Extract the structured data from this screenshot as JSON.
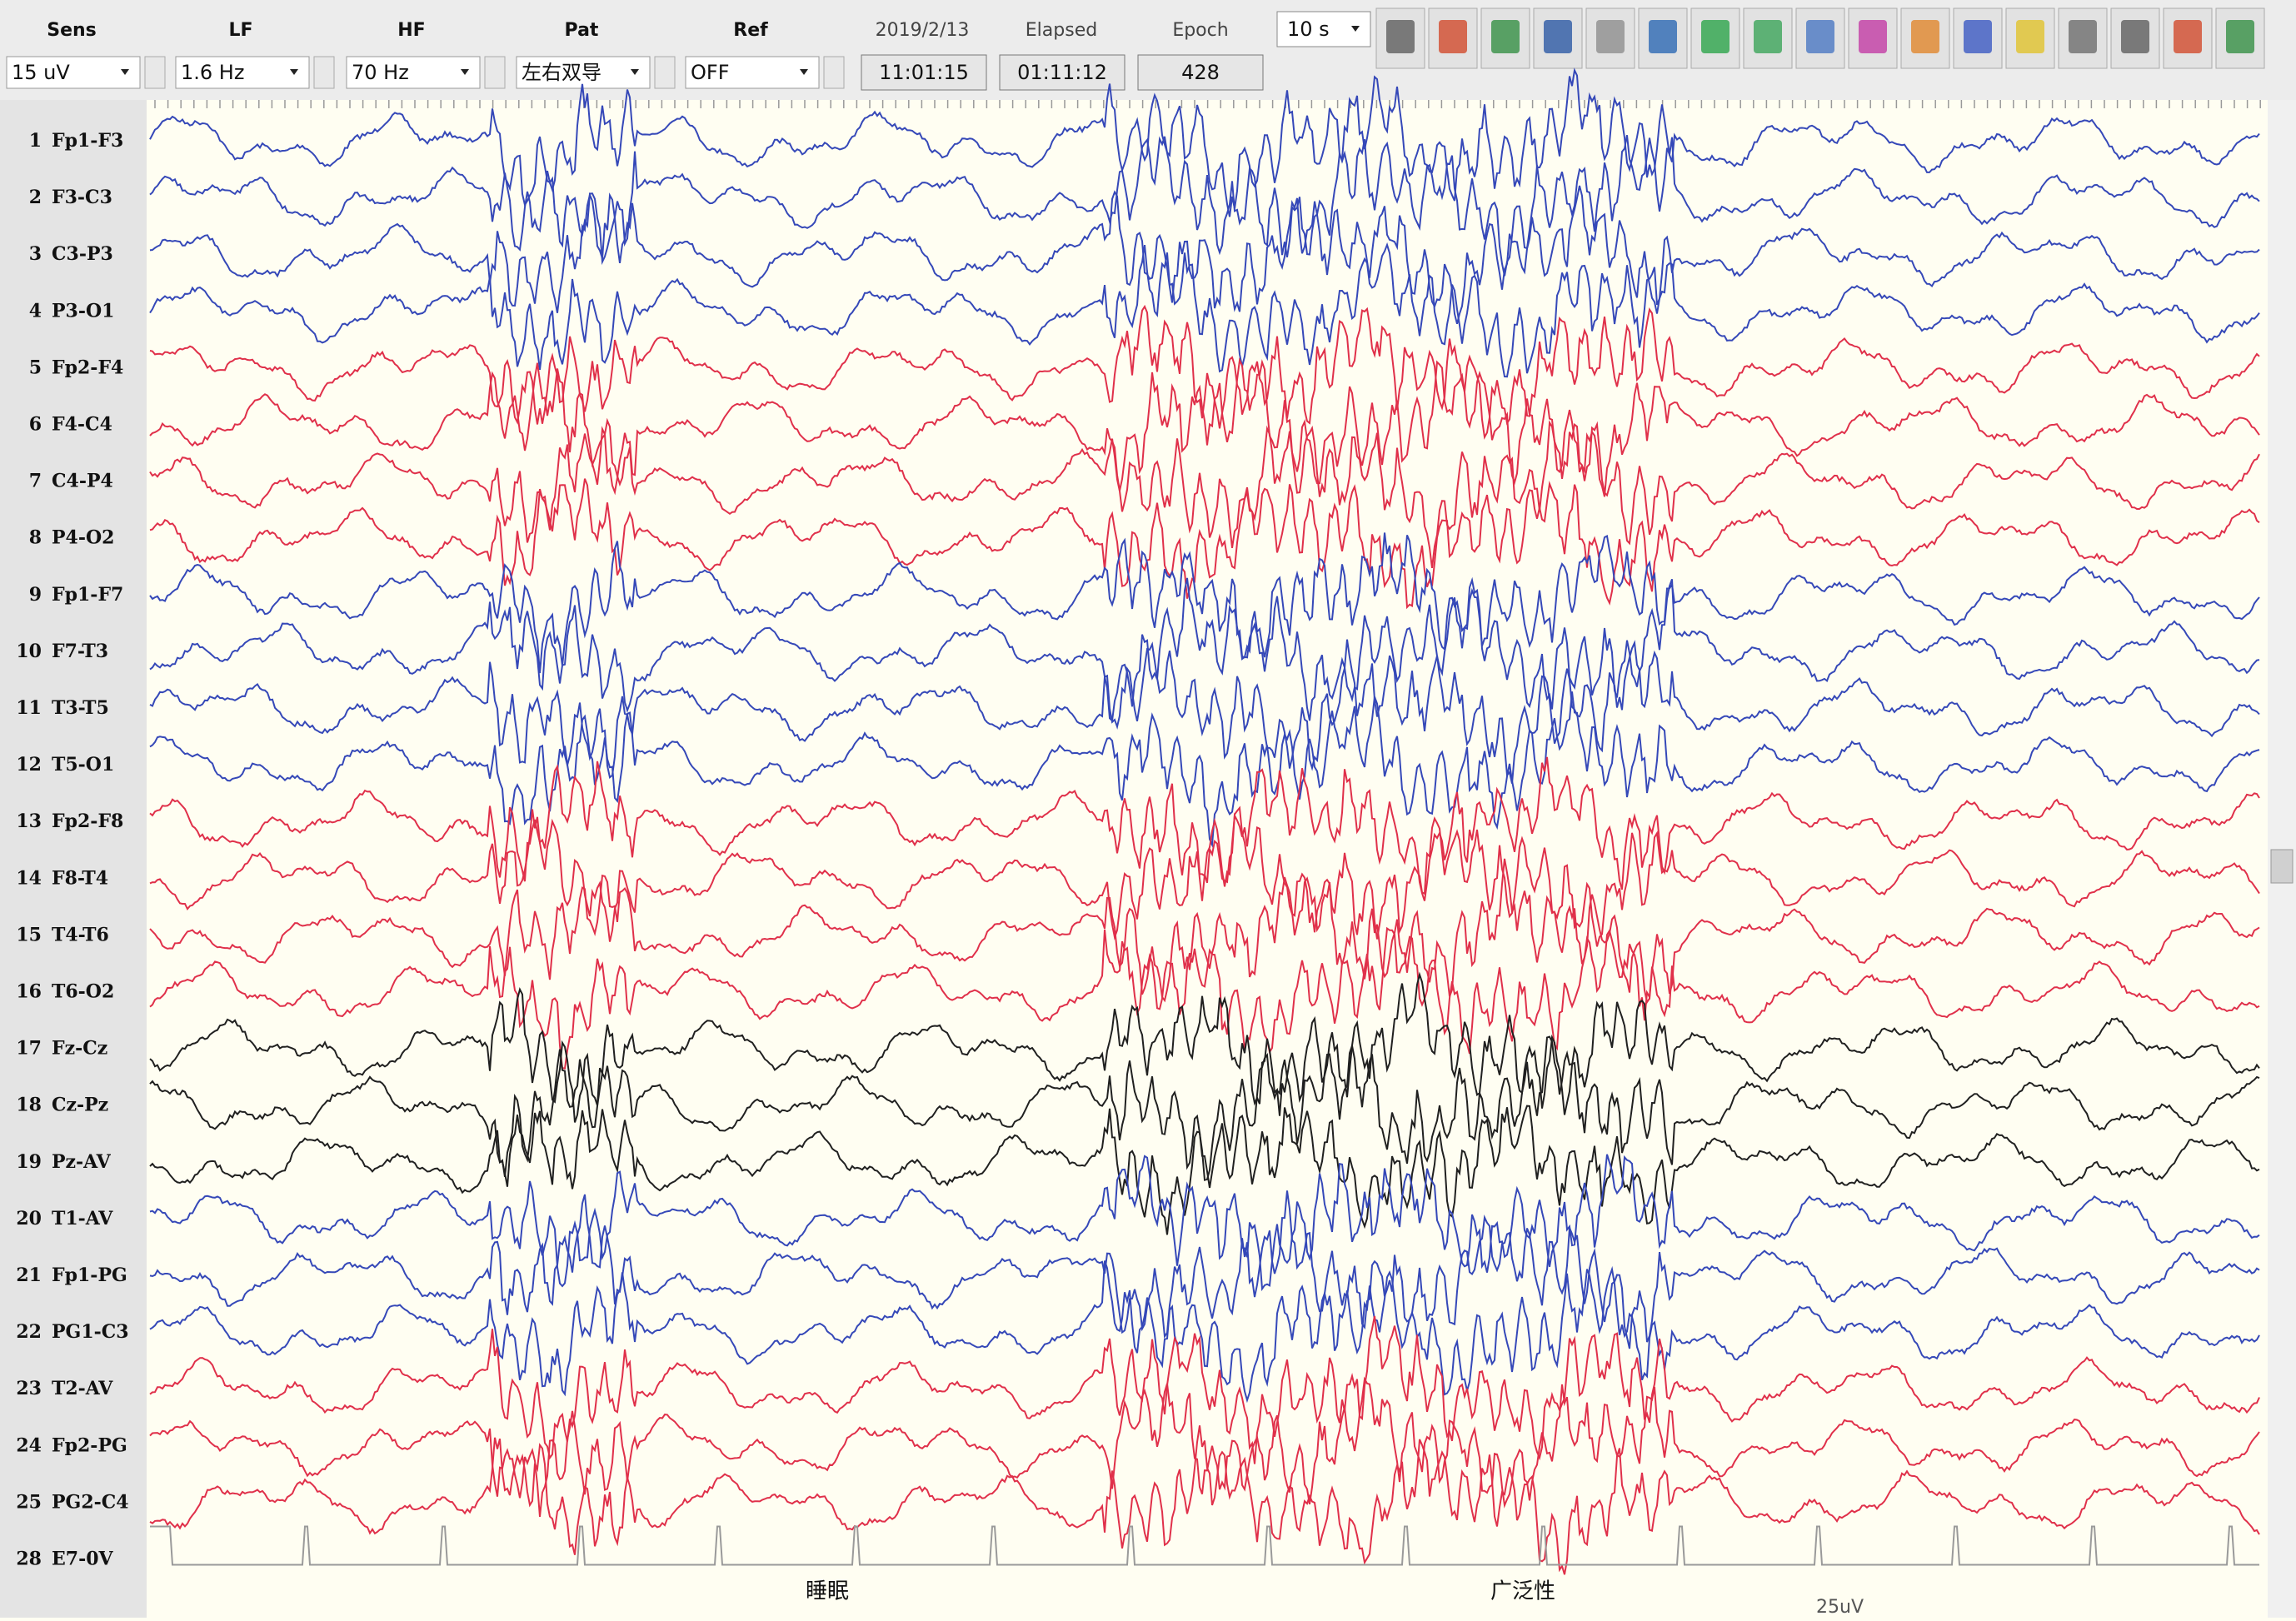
{
  "toolbar": {
    "fields": [
      {
        "label": "Sens",
        "value": "15 uV"
      },
      {
        "label": "LF",
        "value": "1.6 Hz"
      },
      {
        "label": "HF",
        "value": "70 Hz"
      },
      {
        "label": "Pat",
        "value": "左右双导"
      },
      {
        "label": "Ref",
        "value": "OFF"
      }
    ],
    "date": "2019/2/13",
    "time": "11:01:15",
    "elapsed_label": "Elapsed",
    "elapsed": "01:11:12",
    "epoch_label": "Epoch",
    "epoch": "428",
    "page_length": "10 s"
  },
  "channels": [
    {
      "number": "1",
      "label": "Fp1-F3",
      "color": "#3548b8"
    },
    {
      "number": "2",
      "label": "F3-C3",
      "color": "#3548b8"
    },
    {
      "number": "3",
      "label": "C3-P3",
      "color": "#3548b8"
    },
    {
      "number": "4",
      "label": "P3-O1",
      "color": "#3548b8"
    },
    {
      "number": "5",
      "label": "Fp2-F4",
      "color": "#e0304a"
    },
    {
      "number": "6",
      "label": "F4-C4",
      "color": "#e0304a"
    },
    {
      "number": "7",
      "label": "C4-P4",
      "color": "#e0304a"
    },
    {
      "number": "8",
      "label": "P4-O2",
      "color": "#e0304a"
    },
    {
      "number": "9",
      "label": "Fp1-F7",
      "color": "#3548b8"
    },
    {
      "number": "10",
      "label": "F7-T3",
      "color": "#3548b8"
    },
    {
      "number": "11",
      "label": "T3-T5",
      "color": "#3548b8"
    },
    {
      "number": "12",
      "label": "T5-O1",
      "color": "#3548b8"
    },
    {
      "number": "13",
      "label": "Fp2-F8",
      "color": "#e0304a"
    },
    {
      "number": "14",
      "label": "F8-T4",
      "color": "#e0304a"
    },
    {
      "number": "15",
      "label": "T4-T6",
      "color": "#e0304a"
    },
    {
      "number": "16",
      "label": "T6-O2",
      "color": "#e0304a"
    },
    {
      "number": "17",
      "label": "Fz-Cz",
      "color": "#202020"
    },
    {
      "number": "18",
      "label": "Cz-Pz",
      "color": "#202020"
    },
    {
      "number": "19",
      "label": "Pz-AV",
      "color": "#202020"
    },
    {
      "number": "20",
      "label": "T1-AV",
      "color": "#3548b8"
    },
    {
      "number": "21",
      "label": "Fp1-PG",
      "color": "#3548b8"
    },
    {
      "number": "22",
      "label": "PG1-C3",
      "color": "#3548b8"
    },
    {
      "number": "23",
      "label": "T2-AV",
      "color": "#e0304a"
    },
    {
      "number": "24",
      "label": "Fp2-PG",
      "color": "#e0304a"
    },
    {
      "number": "25",
      "label": "PG2-C4",
      "color": "#e0304a"
    },
    {
      "number": "28",
      "label": "E7-0V",
      "color": "#9a9a9a"
    }
  ],
  "annotations": [
    "睡眠",
    "广泛性"
  ],
  "scale_label": "25uV"
}
